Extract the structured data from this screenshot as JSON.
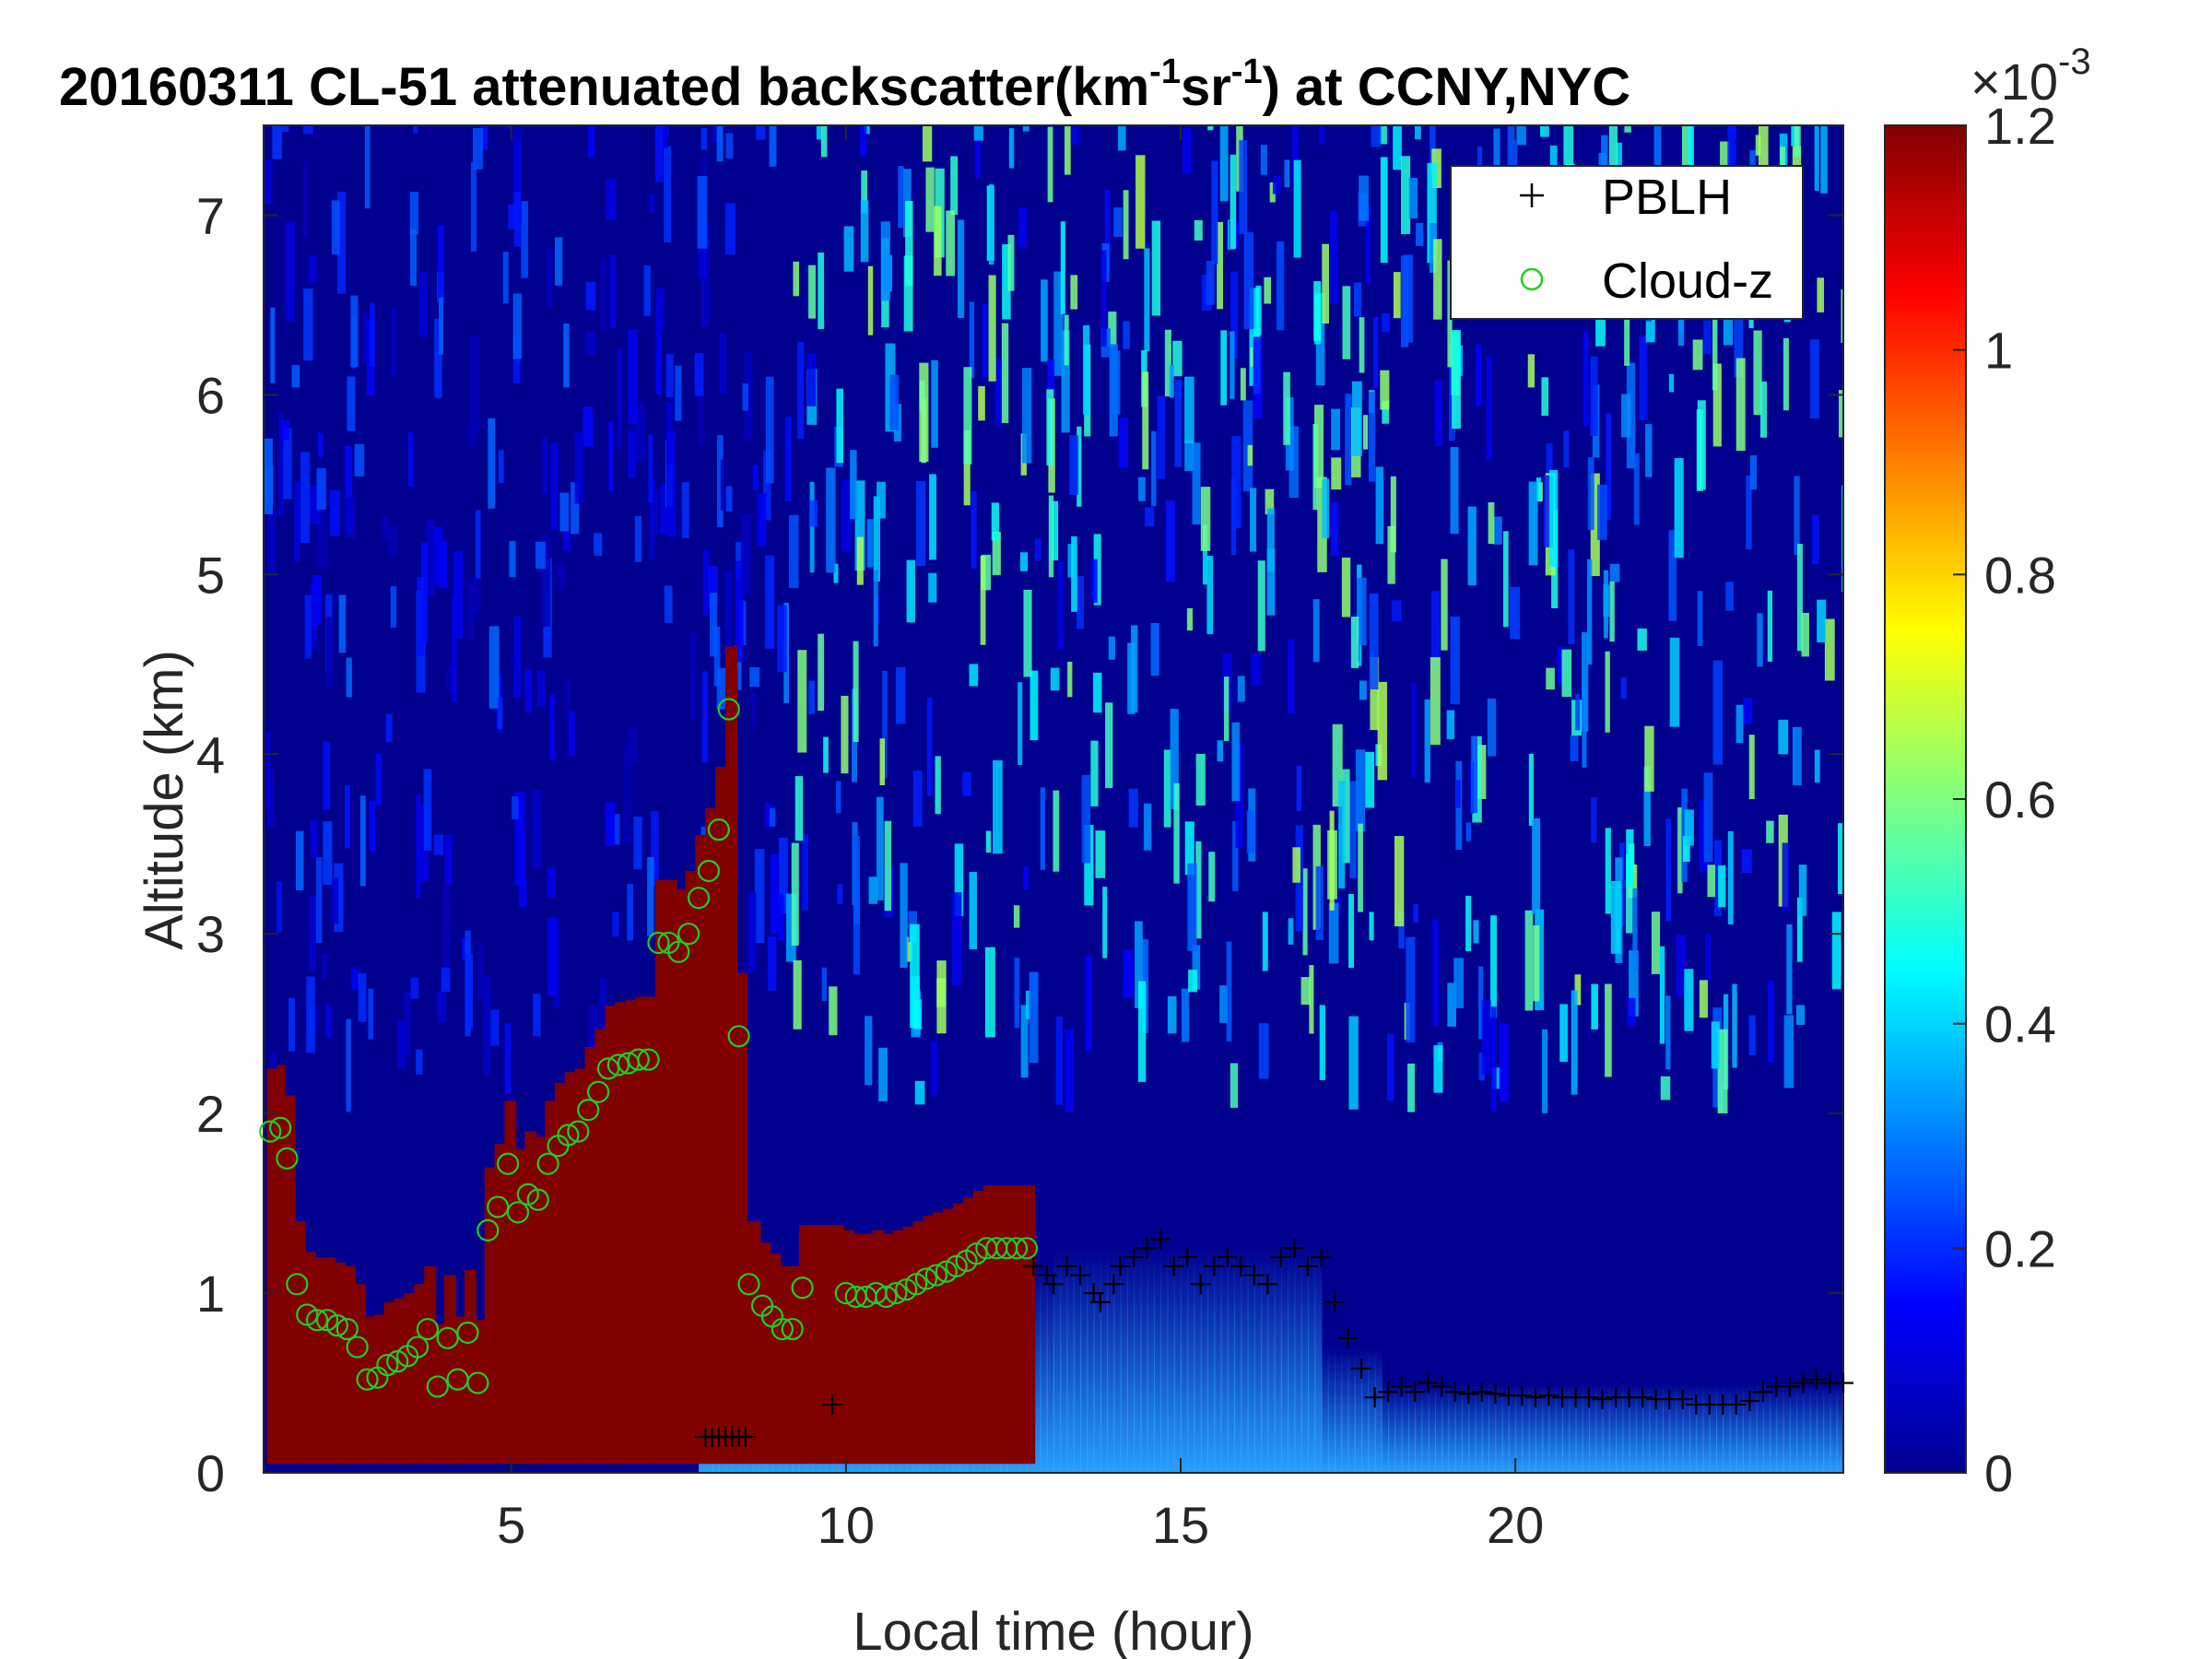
{
  "chart_data": {
    "type": "heatmap",
    "title_prefix": "20160311  CL-51 attenuated backscatter(km",
    "title_sup1": "-1",
    "title_mid": "sr",
    "title_sup2": "-1",
    "title_suffix": ") at CCNY,NYC",
    "xlabel": "Local time (hour)",
    "ylabel": "Altitude (km)",
    "xlim": [
      1.3,
      24.9
    ],
    "ylim": [
      0,
      7.5
    ],
    "x_ticks": [
      "5",
      "10",
      "15",
      "20"
    ],
    "x_tick_values": [
      5,
      10,
      15,
      20
    ],
    "y_ticks": [
      "0",
      "1",
      "2",
      "3",
      "4",
      "5",
      "6",
      "7"
    ],
    "y_tick_values": [
      0,
      1,
      2,
      3,
      4,
      5,
      6,
      7
    ],
    "colorbar": {
      "colormap": "jet",
      "min": 0,
      "max": 1.2,
      "ticks": [
        "0",
        "0.2",
        "0.4",
        "0.6",
        "0.8",
        "1",
        "1.2"
      ],
      "tick_values": [
        0,
        0.2,
        0.4,
        0.6,
        0.8,
        1.0,
        1.2
      ],
      "exponent_base": "×10",
      "exponent": "-3"
    },
    "grid": false,
    "legend_position": "top-right",
    "series": [
      {
        "name": "PBLH",
        "marker": "+",
        "color": "#000000",
        "x": [
          7.9,
          8.0,
          8.1,
          8.2,
          8.3,
          8.4,
          8.5,
          9.8,
          12.8,
          13.0,
          13.1,
          13.3,
          13.5,
          13.7,
          13.8,
          14.0,
          14.1,
          14.3,
          14.5,
          14.7,
          14.9,
          15.1,
          15.3,
          15.5,
          15.7,
          15.9,
          16.1,
          16.3,
          16.5,
          16.7,
          16.9,
          17.1,
          17.3,
          17.5,
          17.7,
          17.9,
          18.1,
          18.3,
          18.5,
          18.7,
          18.9,
          19.1,
          19.3,
          19.5,
          19.7,
          19.9,
          20.1,
          20.3,
          20.5,
          20.7,
          20.9,
          21.1,
          21.3,
          21.5,
          21.7,
          21.9,
          22.1,
          22.3,
          22.5,
          22.7,
          22.9,
          23.1,
          23.3,
          23.5,
          23.7,
          23.9,
          24.1,
          24.3,
          24.5,
          24.7,
          24.9
        ],
        "y": [
          0.2,
          0.2,
          0.2,
          0.2,
          0.2,
          0.2,
          0.2,
          0.38,
          1.15,
          1.1,
          1.05,
          1.15,
          1.1,
          1.0,
          0.95,
          1.05,
          1.15,
          1.2,
          1.25,
          1.3,
          1.15,
          1.2,
          1.05,
          1.15,
          1.2,
          1.15,
          1.1,
          1.05,
          1.2,
          1.25,
          1.15,
          1.2,
          0.95,
          0.75,
          0.58,
          0.42,
          0.45,
          0.48,
          0.45,
          0.5,
          0.48,
          0.45,
          0.44,
          0.45,
          0.44,
          0.43,
          0.43,
          0.42,
          0.43,
          0.42,
          0.42,
          0.42,
          0.41,
          0.42,
          0.42,
          0.42,
          0.41,
          0.41,
          0.41,
          0.38,
          0.38,
          0.38,
          0.38,
          0.4,
          0.45,
          0.48,
          0.48,
          0.5,
          0.52,
          0.5,
          0.5
        ]
      },
      {
        "name": "Cloud-z",
        "marker": "o",
        "color": "#22cc22",
        "x": [
          1.4,
          1.55,
          1.65,
          1.8,
          1.95,
          2.1,
          2.25,
          2.4,
          2.55,
          2.7,
          2.85,
          3.0,
          3.15,
          3.3,
          3.45,
          3.6,
          3.75,
          3.9,
          4.05,
          4.2,
          4.35,
          4.5,
          4.65,
          4.8,
          4.95,
          5.1,
          5.25,
          5.4,
          5.55,
          5.7,
          5.85,
          6.0,
          6.15,
          6.3,
          6.45,
          6.6,
          6.75,
          6.9,
          7.05,
          7.2,
          7.35,
          7.5,
          7.65,
          7.8,
          7.95,
          8.1,
          8.25,
          8.4,
          8.55,
          8.75,
          8.9,
          9.05,
          9.2,
          9.35,
          10.0,
          10.15,
          10.3,
          10.45,
          10.6,
          10.75,
          10.9,
          11.05,
          11.2,
          11.35,
          11.5,
          11.65,
          11.8,
          11.95,
          12.1,
          12.25,
          12.4,
          12.55,
          12.7
        ],
        "y": [
          1.9,
          1.92,
          1.75,
          1.05,
          0.88,
          0.85,
          0.85,
          0.82,
          0.8,
          0.7,
          0.52,
          0.53,
          0.6,
          0.62,
          0.65,
          0.7,
          0.8,
          0.48,
          0.75,
          0.52,
          0.78,
          0.5,
          1.35,
          1.48,
          1.72,
          1.45,
          1.55,
          1.52,
          1.72,
          1.82,
          1.88,
          1.9,
          2.02,
          2.12,
          2.25,
          2.27,
          2.28,
          2.3,
          2.3,
          2.95,
          2.95,
          2.9,
          3.0,
          3.2,
          3.35,
          3.58,
          4.25,
          2.43,
          1.05,
          0.93,
          0.87,
          0.8,
          0.8,
          1.03,
          1.0,
          0.98,
          0.98,
          1.0,
          0.98,
          1.0,
          1.02,
          1.05,
          1.08,
          1.1,
          1.12,
          1.15,
          1.18,
          1.22,
          1.25,
          1.25,
          1.25,
          1.25,
          1.25
        ]
      }
    ]
  }
}
